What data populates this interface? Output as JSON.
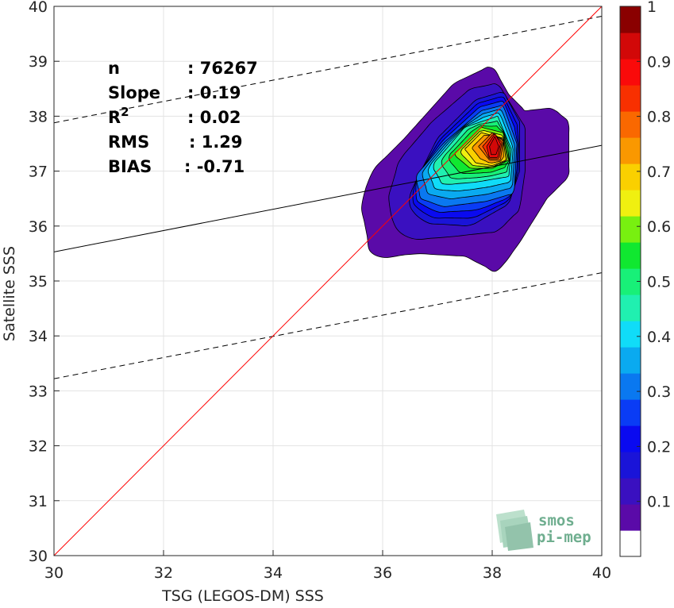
{
  "chart_data": {
    "type": "density-contour-scatter",
    "xlabel": "TSG (LEGOS-DM) SSS",
    "ylabel": "Satellite SSS",
    "xlim": [
      30,
      40
    ],
    "ylim": [
      30,
      40
    ],
    "x_ticks": [
      30,
      32,
      34,
      36,
      38,
      40
    ],
    "y_ticks": [
      30,
      31,
      32,
      33,
      34,
      35,
      36,
      37,
      38,
      39,
      40
    ],
    "grid": true,
    "stats": [
      {
        "label": "n",
        "value": ": 76267"
      },
      {
        "label": "Slope",
        "value": ": 0.19"
      },
      {
        "label": "R",
        "sup": "2",
        "value": ": 0.02"
      },
      {
        "label": "RMS",
        "value": ": 1.29"
      },
      {
        "label": "BIAS",
        "value": ": -0.71"
      }
    ],
    "lines": {
      "identity": {
        "color": "#ff0000",
        "from": [
          30,
          30
        ],
        "to": [
          40,
          40
        ]
      },
      "regression": {
        "color": "#000000",
        "style": "solid",
        "from": [
          30,
          35.53
        ],
        "to": [
          40,
          37.47
        ]
      },
      "upper_bound": {
        "color": "#000000",
        "style": "dashed",
        "from": [
          30,
          37.88
        ],
        "to": [
          40,
          39.82
        ]
      },
      "lower_bound": {
        "color": "#000000",
        "style": "dashed",
        "from": [
          30,
          33.22
        ],
        "to": [
          40,
          35.15
        ]
      }
    },
    "density_peak": {
      "x": 38.05,
      "y": 37.45
    },
    "contour_levels": [
      0.05,
      0.1,
      0.15,
      0.2,
      0.25,
      0.3,
      0.35,
      0.4,
      0.45,
      0.5,
      0.55,
      0.6,
      0.65,
      0.7,
      0.75,
      0.8,
      0.85,
      0.9,
      0.95
    ],
    "contour_outlines": {
      "0.05": [
        [
          35.6,
          36.4
        ],
        [
          35.8,
          37.0
        ],
        [
          36.4,
          37.6
        ],
        [
          37.3,
          38.6
        ],
        [
          38.0,
          38.93
        ],
        [
          38.3,
          38.4
        ],
        [
          38.6,
          38.1
        ],
        [
          39.1,
          38.15
        ],
        [
          39.4,
          37.9
        ],
        [
          39.4,
          36.9
        ],
        [
          39.0,
          36.5
        ],
        [
          38.5,
          35.7
        ],
        [
          38.1,
          35.15
        ],
        [
          37.5,
          35.45
        ],
        [
          36.6,
          35.5
        ],
        [
          35.8,
          35.4
        ]
      ],
      "0.1": [
        [
          36.1,
          36.5
        ],
        [
          36.3,
          37.2
        ],
        [
          36.9,
          37.9
        ],
        [
          37.6,
          38.5
        ],
        [
          38.1,
          38.6
        ],
        [
          38.6,
          37.8
        ],
        [
          38.6,
          37.0
        ],
        [
          38.5,
          36.3
        ],
        [
          38.1,
          35.9
        ],
        [
          37.2,
          35.8
        ],
        [
          36.5,
          35.75
        ],
        [
          36.2,
          36.0
        ]
      ],
      "0.15": [
        [
          36.5,
          36.6
        ],
        [
          37.0,
          37.6
        ],
        [
          37.7,
          38.3
        ],
        [
          38.2,
          38.45
        ],
        [
          38.5,
          37.9
        ],
        [
          38.5,
          37.0
        ],
        [
          38.3,
          36.4
        ],
        [
          37.6,
          36.0
        ],
        [
          36.8,
          36.05
        ],
        [
          36.5,
          36.3
        ]
      ],
      "0.3": [
        [
          36.6,
          36.9
        ],
        [
          37.1,
          37.5
        ],
        [
          37.8,
          38.1
        ],
        [
          38.2,
          38.2
        ],
        [
          38.45,
          37.5
        ],
        [
          38.4,
          36.6
        ],
        [
          37.9,
          36.45
        ],
        [
          37.1,
          36.35
        ],
        [
          36.7,
          36.5
        ]
      ],
      "0.45": [
        [
          36.9,
          37.1
        ],
        [
          37.5,
          37.8
        ],
        [
          38.1,
          38.0
        ],
        [
          38.35,
          37.4
        ],
        [
          38.3,
          36.9
        ],
        [
          37.7,
          36.8
        ],
        [
          37.1,
          36.75
        ]
      ],
      "0.6": [
        [
          37.3,
          37.3
        ],
        [
          37.8,
          37.8
        ],
        [
          38.2,
          37.7
        ],
        [
          38.3,
          37.2
        ],
        [
          38.0,
          37.05
        ],
        [
          37.6,
          37.05
        ]
      ],
      "0.7": [
        [
          37.5,
          37.4
        ],
        [
          37.8,
          37.7
        ],
        [
          38.2,
          37.6
        ],
        [
          38.25,
          37.2
        ],
        [
          38.0,
          37.1
        ],
        [
          37.7,
          37.15
        ]
      ],
      "0.8": [
        [
          37.75,
          37.45
        ],
        [
          38.0,
          37.7
        ],
        [
          38.2,
          37.55
        ],
        [
          38.15,
          37.2
        ],
        [
          37.95,
          37.2
        ]
      ],
      "0.9": [
        [
          37.9,
          37.45
        ],
        [
          38.05,
          37.68
        ],
        [
          38.15,
          37.5
        ],
        [
          38.1,
          37.25
        ],
        [
          37.95,
          37.25
        ]
      ],
      "0.95": [
        [
          37.95,
          37.45
        ],
        [
          38.05,
          37.63
        ],
        [
          38.12,
          37.45
        ],
        [
          38.07,
          37.3
        ],
        [
          37.98,
          37.3
        ]
      ]
    },
    "colorbar": {
      "min": 0,
      "max": 1,
      "ticks": [
        0.1,
        0.2,
        0.3,
        0.4,
        0.5,
        0.6,
        0.7,
        0.8,
        0.9,
        1
      ],
      "tick_labels": [
        "0.1",
        "0.2",
        "0.3",
        "0.4",
        "0.5",
        "0.6",
        "0.7",
        "0.8",
        "0.9",
        "1"
      ],
      "colors": [
        "#ffffff",
        "#5a0aa8",
        "#3a10c0",
        "#1a14d8",
        "#0a0af0",
        "#0a3cf5",
        "#0a78f0",
        "#0aaaf0",
        "#10dcf8",
        "#20f0b0",
        "#18f078",
        "#10e830",
        "#78f010",
        "#f0f010",
        "#fad000",
        "#fa9800",
        "#fa6800",
        "#f83000",
        "#fa0a0a",
        "#d20808",
        "#8a0000"
      ]
    }
  },
  "watermark": {
    "line1": "smos",
    "line2": "pi-mep"
  }
}
